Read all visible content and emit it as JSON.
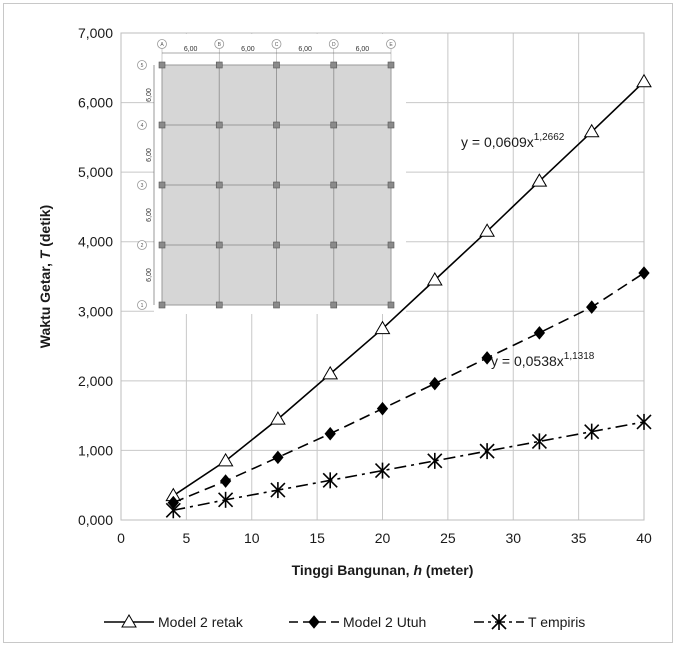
{
  "chart_data": {
    "type": "line",
    "title": "",
    "xlabel": "Tinggi Bangunan, ",
    "xlabel_italic": "h",
    "xlabel_suffix": " (meter)",
    "ylabel": "Waktu Getar, ",
    "ylabel_italic": "T",
    "ylabel_suffix": " (detik)",
    "xlim": [
      0,
      40
    ],
    "ylim": [
      0,
      7
    ],
    "x_ticks": [
      "0",
      "5",
      "10",
      "15",
      "20",
      "25",
      "30",
      "35",
      "40"
    ],
    "y_ticks": [
      "0,000",
      "1,000",
      "2,000",
      "3,000",
      "4,000",
      "5,000",
      "6,000",
      "7,000"
    ],
    "grid": true,
    "legend_position": "bottom",
    "x": [
      4,
      8,
      12,
      16,
      20,
      24,
      28,
      32,
      36,
      40
    ],
    "series": [
      {
        "name": "Model 2 retak",
        "marker": "open-triangle",
        "line": "solid",
        "color": "#000000",
        "values": [
          0.35,
          0.85,
          1.45,
          2.1,
          2.75,
          3.45,
          4.15,
          4.87,
          5.58,
          6.3
        ]
      },
      {
        "name": "Model 2 Utuh",
        "marker": "filled-diamond",
        "line": "dashed",
        "color": "#000000",
        "values": [
          0.25,
          0.56,
          0.9,
          1.24,
          1.6,
          1.96,
          2.33,
          2.69,
          3.06,
          3.55
        ]
      },
      {
        "name": "T empiris",
        "marker": "asterisk",
        "line": "dash-dot",
        "color": "#000000",
        "values": [
          0.14,
          0.29,
          0.43,
          0.57,
          0.71,
          0.85,
          0.99,
          1.13,
          1.27,
          1.41
        ]
      }
    ],
    "annotations": [
      {
        "text": "y = 0,0609x",
        "sup": "1,2662"
      },
      {
        "text": "y = 0,0538x",
        "sup": "1,1318"
      }
    ],
    "inset": {
      "grid_labels_x": [
        "A",
        "B",
        "C",
        "D",
        "E"
      ],
      "grid_labels_y": [
        "5",
        "4",
        "3",
        "2",
        "1"
      ],
      "spans_x": [
        "6,00",
        "6,00",
        "6,00",
        "6,00"
      ],
      "spans_y": [
        "6,00",
        "6,00",
        "6,00",
        "6,00"
      ]
    }
  }
}
